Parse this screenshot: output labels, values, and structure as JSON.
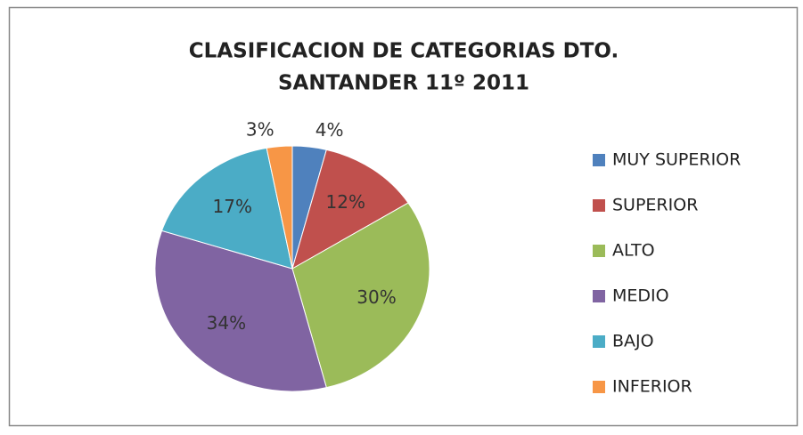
{
  "chart_data": {
    "type": "pie",
    "title": [
      "CLASIFICACION DE CATEGORIAS DTO.",
      "SANTANDER 11º 2011"
    ],
    "categories": [
      "MUY SUPERIOR",
      "SUPERIOR",
      "ALTO",
      "MEDIO",
      "BAJO",
      "INFERIOR"
    ],
    "values": [
      4,
      12,
      30,
      34,
      17,
      3
    ],
    "value_labels": [
      "4%",
      "12%",
      "30%",
      "34%",
      "17%",
      "3%"
    ],
    "colors": [
      "#4f81bd",
      "#c0504d",
      "#9bbb59",
      "#8064a2",
      "#4bacc6",
      "#f79646"
    ],
    "legend": "right"
  }
}
